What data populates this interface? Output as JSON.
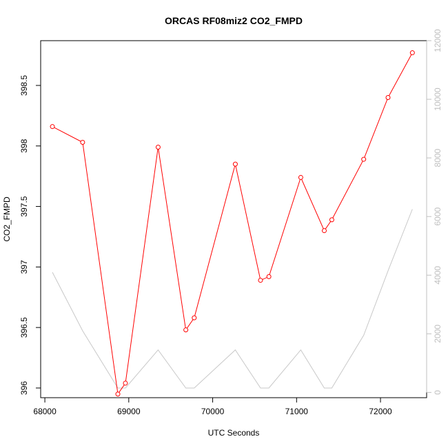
{
  "chart_data": {
    "type": "line",
    "title": "ORCAS RF08miz2 CO2_FMPD",
    "xlabel": "UTC Seconds",
    "ylabel": "CO2_FMPD",
    "xlim": [
      67950,
      72550
    ],
    "ylim": [
      395.92,
      398.87
    ],
    "y2lim": [
      -180,
      12000
    ],
    "x_ticks": [
      68000,
      69000,
      70000,
      71000,
      72000
    ],
    "y_ticks": [
      396.0,
      396.5,
      397.0,
      397.5,
      398.0,
      398.5
    ],
    "y2_ticks": [
      0,
      2000,
      4000,
      6000,
      8000,
      10000,
      12000
    ],
    "grid": false,
    "legend": "none",
    "series": [
      {
        "color": "#ff0000",
        "axis": "left",
        "style": "line+points",
        "x": [
          68090,
          68450,
          68870,
          68960,
          69350,
          69680,
          69780,
          70270,
          70570,
          70670,
          71050,
          71330,
          71420,
          71800,
          72090,
          72380
        ],
        "y": [
          398.16,
          398.03,
          395.95,
          396.04,
          397.99,
          396.48,
          396.58,
          397.85,
          396.89,
          396.92,
          397.74,
          397.3,
          397.39,
          397.89,
          398.4,
          398.77
        ]
      },
      {
        "color": "#c8c8c8",
        "axis": "right",
        "style": "line",
        "x": [
          68090,
          68450,
          68870,
          68960,
          69350,
          69680,
          69780,
          70270,
          70570,
          70670,
          71050,
          71330,
          71420,
          71800,
          72090,
          72380
        ],
        "y": [
          4100,
          2100,
          150,
          150,
          1450,
          150,
          150,
          1450,
          150,
          150,
          1450,
          150,
          150,
          1950,
          4150,
          6250
        ]
      }
    ]
  }
}
